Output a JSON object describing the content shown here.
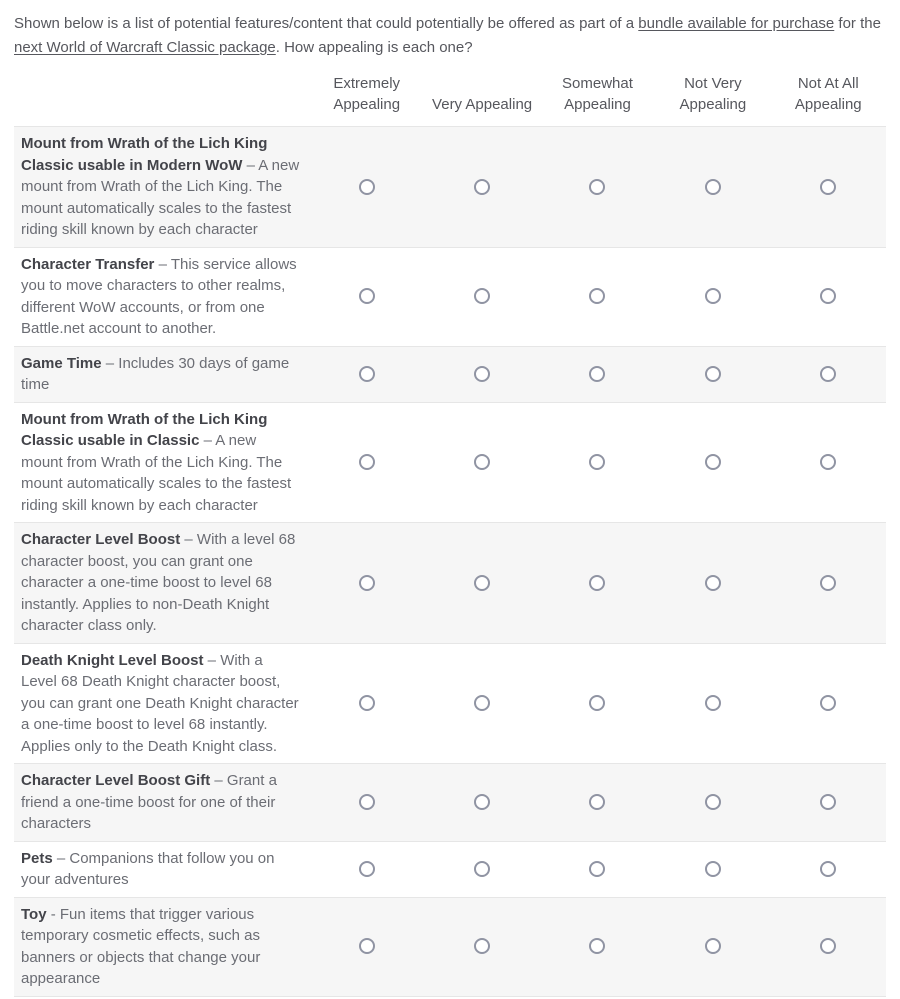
{
  "intro": {
    "text_before_link1": "Shown below is a list of potential features/content that could potentially be offered as part of a ",
    "link1": "bundle available for purchase",
    "text_between_links": " for the ",
    "link2": "next World of Warcraft Classic package",
    "text_after_link2": ". How appealing is each one?"
  },
  "matrix": {
    "columns": [
      "Extremely Appealing",
      "Very Appealing",
      "Somewhat Appealing",
      "Not Very Appealing",
      "Not At All Appealing"
    ],
    "rows": [
      {
        "title": "Mount from Wrath of the Lich King Classic usable in Modern WoW",
        "desc": " – A new mount from Wrath of the Lich King. The mount automatically scales to the fastest riding skill known by each character"
      },
      {
        "title": "Character Transfer",
        "desc": " – This service allows you to move characters to other realms, different WoW accounts, or from one Battle.net account to another."
      },
      {
        "title": "Game Time",
        "desc": " – Includes 30 days of game time"
      },
      {
        "title": "Mount from Wrath of the Lich King Classic usable in Classic",
        "desc": " – A new mount from Wrath of the Lich King. The mount automatically scales to the fastest riding skill known by each character"
      },
      {
        "title": "Character Level Boost",
        "desc": " – With a level 68 character boost, you can grant one character a one-time boost to level 68 instantly. Applies to non-Death Knight character class only."
      },
      {
        "title": "Death Knight Level Boost",
        "desc": " – With a Level 68 Death Knight character boost, you can grant one Death Knight character a one-time boost to level 68 instantly. Applies only to the Death Knight class."
      },
      {
        "title": "Character Level Boost Gift",
        "desc": " – Grant a friend a one-time boost for one of their characters"
      },
      {
        "title": "Pets",
        "desc": " – Companions that follow you on your adventures"
      },
      {
        "title": "Toy",
        "desc": " - Fun items that trigger various temporary cosmetic effects, such as banners or objects that change your appearance"
      }
    ]
  },
  "colors": {
    "row_stripe": "#f6f6f6",
    "row_border": "#e6e6e6",
    "title_text": "#43444a",
    "body_text": "#6b6d74",
    "intro_text": "#56575d",
    "header_text": "#56575d",
    "radio_border": "#9094a3"
  }
}
